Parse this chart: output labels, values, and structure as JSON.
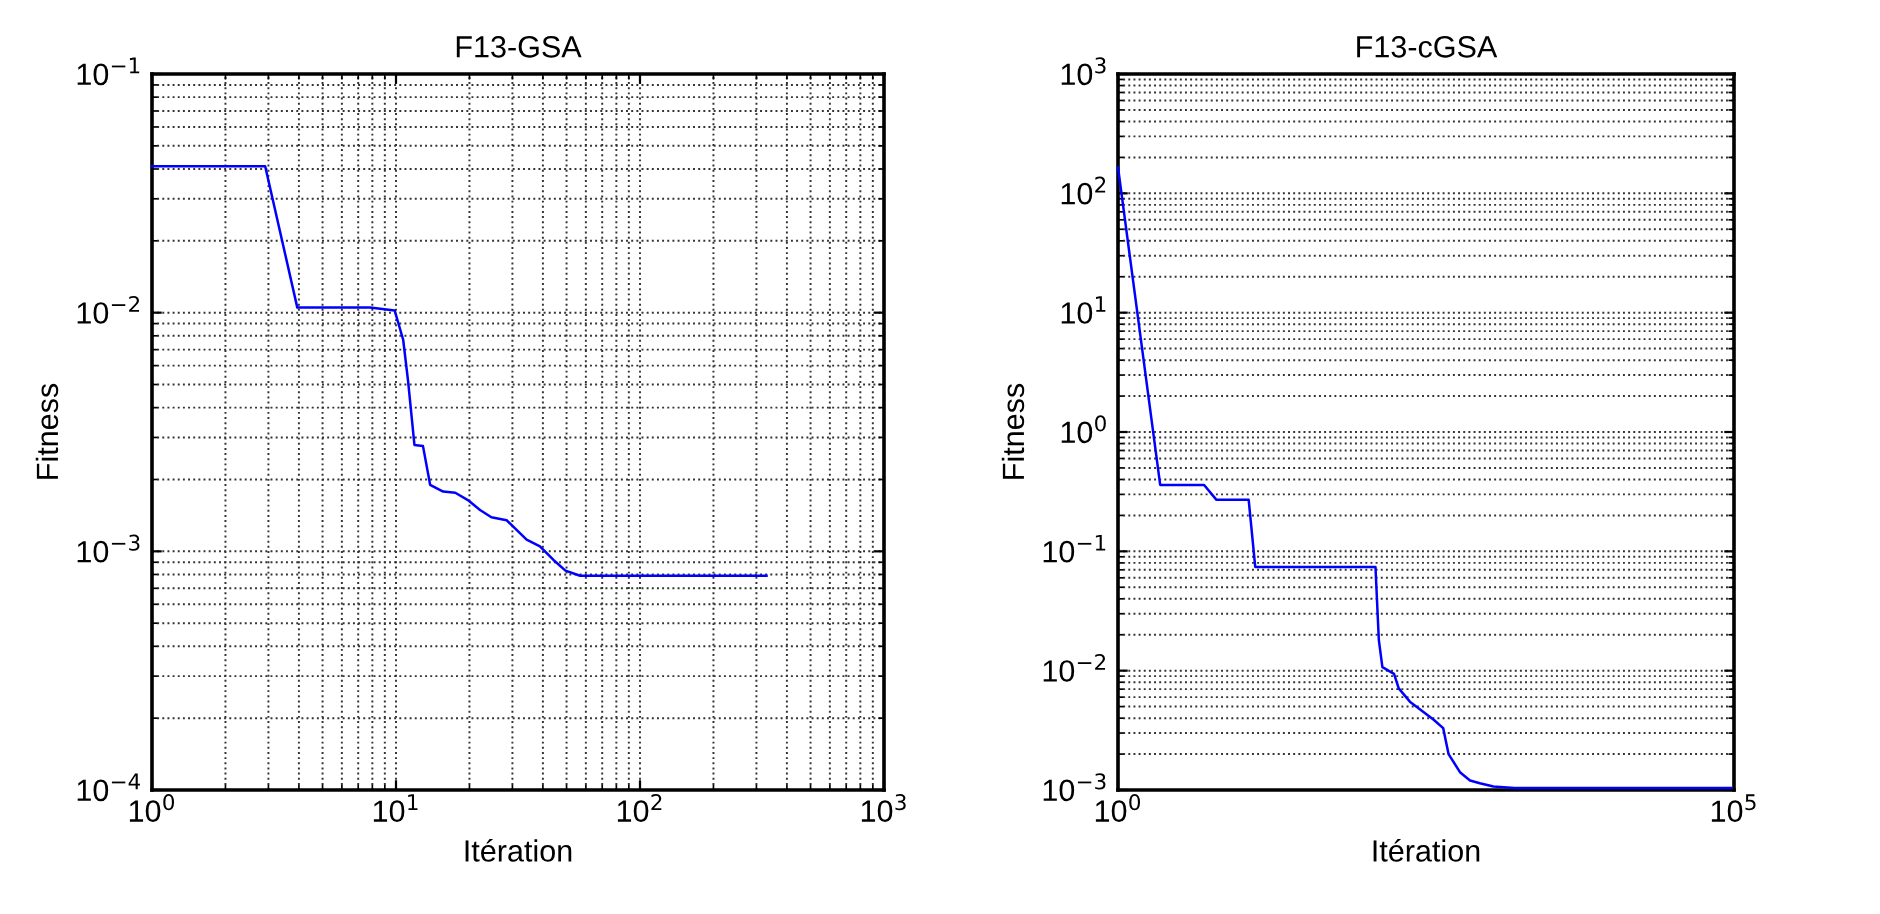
{
  "chart_data": [
    {
      "type": "line",
      "title": "F13-GSA",
      "xlabel": "Itération",
      "ylabel": "Fitness",
      "log": "xy",
      "grid": true,
      "xlim": [
        1,
        1000
      ],
      "ylim": [
        0.0001,
        0.1
      ],
      "xticks": [
        {
          "value": 1,
          "label": "10$^{0}$"
        },
        {
          "value": 10,
          "label": "10$^{1}$"
        },
        {
          "value": 100,
          "label": "10$^{2}$"
        },
        {
          "value": 1000,
          "label": "10$^{3}$"
        }
      ],
      "yticks": [
        {
          "value": 0.0001,
          "label": "10$^{−4}$"
        },
        {
          "value": 0.001,
          "label": "10$^{−3}$"
        },
        {
          "value": 0.01,
          "label": "10$^{−2}$"
        },
        {
          "value": 0.1,
          "label": "10$^{−1}$"
        }
      ],
      "series": [
        {
          "color": "#0000ff",
          "x": [
            1,
            2.91,
            3.94,
            7.82,
            9.88,
            10.7,
            11.2,
            11.9,
            12.9,
            13.8,
            15.6,
            17.5,
            19.7,
            22.1,
            24.6,
            28.4,
            34.3,
            38.9,
            44.2,
            49.5,
            56.8,
            330
          ],
          "values": [
            0.0411,
            0.0411,
            0.0105,
            0.0105,
            0.0102,
            0.0077,
            0.0052,
            0.00279,
            0.00276,
            0.0019,
            0.00178,
            0.00176,
            0.00164,
            0.00149,
            0.00139,
            0.00135,
            0.00112,
            0.00105,
            0.00092,
            0.00083,
            0.00079,
            0.00079
          ]
        }
      ]
    },
    {
      "type": "line",
      "title": "F13-cGSA",
      "xlabel": "Itération",
      "ylabel": "Fitness",
      "log": "xy",
      "grid": "y",
      "xlim": [
        1,
        100000
      ],
      "ylim": [
        0.001,
        1000
      ],
      "xticks": [
        {
          "value": 1,
          "label": "10$^{0}$"
        },
        {
          "value": 100000,
          "label": "10$^{5}$"
        }
      ],
      "yticks": [
        {
          "value": 0.001,
          "label": "10$^{−3}$"
        },
        {
          "value": 0.01,
          "label": "10$^{−2}$"
        },
        {
          "value": 0.1,
          "label": "10$^{−1}$"
        },
        {
          "value": 1,
          "label": "10$^{0}$"
        },
        {
          "value": 10,
          "label": "10$^{1}$"
        },
        {
          "value": 100,
          "label": "10$^{2}$"
        },
        {
          "value": 1000,
          "label": "10$^{3}$"
        }
      ],
      "series": [
        {
          "color": "#0000ff",
          "x": [
            1,
            2.2,
            5.0,
            6.3,
            11.5,
            13,
            123,
            131,
            140,
            174,
            190,
            234,
            363,
            436,
            482,
            600,
            720,
            865,
            1115,
            1650,
            95000
          ],
          "values": [
            166,
            0.36,
            0.36,
            0.27,
            0.27,
            0.074,
            0.074,
            0.018,
            0.0107,
            0.0094,
            0.0071,
            0.0055,
            0.0039,
            0.0033,
            0.002,
            0.0014,
            0.0012,
            0.00114,
            0.00107,
            0.00104,
            0.00104
          ]
        }
      ]
    }
  ]
}
